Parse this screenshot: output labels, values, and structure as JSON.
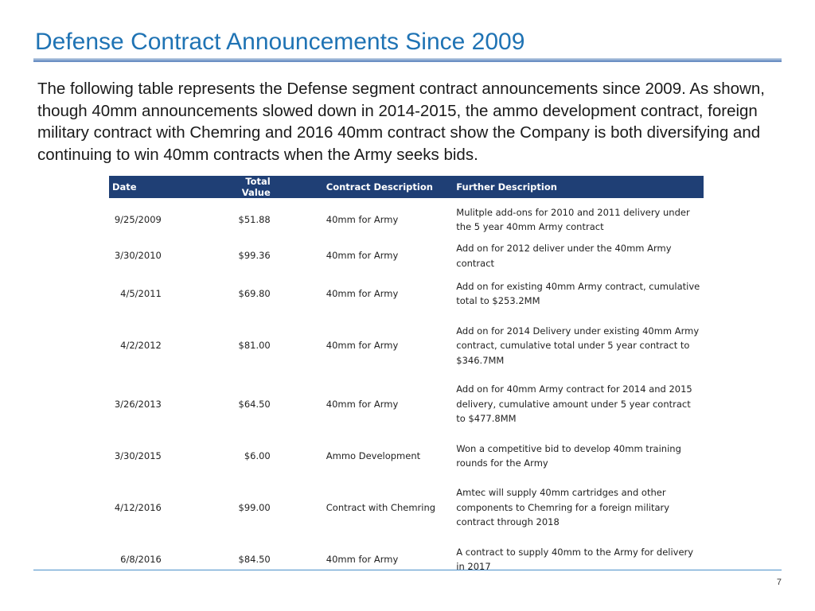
{
  "slide": {
    "title": "Defense Contract Announcements Since 2009",
    "intro": "The following table represents the Defense segment contract announcements since 2009.  As shown, though 40mm announcements slowed down in 2014-2015, the ammo development contract, foreign military contract with Chemring and 2016 40mm contract show the Company is both diversifying and continuing to win 40mm contracts when the Army seeks bids.",
    "page_number": "7"
  },
  "table": {
    "headers": [
      "Date",
      "Total Value",
      "Contract Description",
      "Further Description"
    ],
    "rows": [
      {
        "date": "9/25/2009",
        "value": "$51.88",
        "desc": "40mm for Army",
        "further": "Mulitple add-ons for 2010 and 2011 delivery under the 5 year 40mm Army contract"
      },
      {
        "date": "3/30/2010",
        "value": "$99.36",
        "desc": "40mm for Army",
        "further": "Add on for 2012 deliver under the 40mm Army contract"
      },
      {
        "date": "4/5/2011",
        "value": "$69.80",
        "desc": "40mm for Army",
        "further": "Add on for existing 40mm Army contract, cumulative total to $253.2MM"
      },
      {
        "date": "4/2/2012",
        "value": "$81.00",
        "desc": "40mm for Army",
        "further": "Add on for 2014 Delivery under existing 40mm Army contract, cumulative total under 5 year contract to $346.7MM"
      },
      {
        "date": "3/26/2013",
        "value": "$64.50",
        "desc": "40mm for Army",
        "further": "Add on for 40mm Army contract for 2014 and 2015 delivery, cumulative amount under 5 year contract to $477.8MM"
      },
      {
        "date": "3/30/2015",
        "value": "$6.00",
        "desc": "Ammo Development",
        "further": "Won a competitive bid to develop 40mm training rounds for the Army"
      },
      {
        "date": "4/12/2016",
        "value": "$99.00",
        "desc": "Contract with Chemring",
        "further": "Amtec will supply 40mm cartridges and other components to Chemring for a foreign military contract through 2018"
      },
      {
        "date": "6/8/2016",
        "value": "$84.50",
        "desc": "40mm for Army",
        "further": "A contract to supply 40mm to the Army for delivery in 2017"
      }
    ]
  }
}
